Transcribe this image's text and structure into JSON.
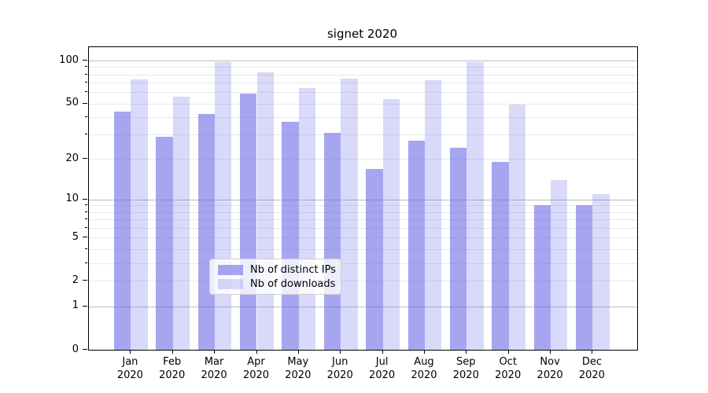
{
  "title": "signet 2020",
  "chart_data": {
    "type": "bar",
    "title": "signet 2020",
    "xlabel": "",
    "ylabel": "",
    "year": "2020",
    "categories": [
      "Jan 2020",
      "Feb 2020",
      "Mar 2020",
      "Apr 2020",
      "May 2020",
      "Jun 2020",
      "Jul 2020",
      "Aug 2020",
      "Sep 2020",
      "Oct 2020",
      "Nov 2020",
      "Dec 2020"
    ],
    "months": [
      "Jan",
      "Feb",
      "Mar",
      "Apr",
      "May",
      "Jun",
      "Jul",
      "Aug",
      "Sep",
      "Oct",
      "Nov",
      "Dec"
    ],
    "series": [
      {
        "name": "Nb of distinct IPs",
        "color": "rgba(107,107,230,0.60)",
        "solid_color": "#a6a6f0",
        "values": [
          44,
          29,
          42,
          59,
          37,
          31,
          17,
          27,
          24,
          19,
          9,
          9
        ]
      },
      {
        "name": "Nb of downloads",
        "color": "rgba(107,107,230,0.26)",
        "solid_color": "#d8d8f8",
        "values": [
          74,
          56,
          98,
          83,
          64,
          75,
          54,
          73,
          98,
          49,
          14,
          11
        ]
      }
    ],
    "yscale": "log1p",
    "ylim": [
      0,
      124
    ],
    "yticks_labeled": [
      100,
      50,
      20,
      10,
      5,
      2,
      1,
      0
    ],
    "yticks_minor": [
      3,
      4,
      6,
      7,
      8,
      9,
      30,
      40,
      60,
      70,
      80,
      90
    ],
    "major_gridlines": [
      1,
      10,
      100
    ],
    "minor_gridlines": [
      2,
      3,
      4,
      5,
      6,
      7,
      8,
      9,
      20,
      30,
      40,
      50,
      60,
      70,
      80,
      90
    ],
    "grid": "on",
    "legend_position": "lower-center"
  },
  "legend": {
    "items": [
      "Nb of distinct IPs",
      "Nb of downloads"
    ]
  },
  "colors": {
    "major_grid": "#bdbdbd",
    "minor_grid": "#e8e8e8",
    "spine": "#000000",
    "background": "#ffffff"
  }
}
